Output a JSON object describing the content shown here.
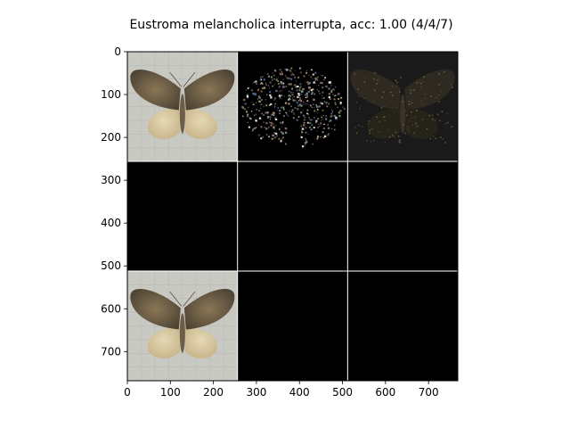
{
  "figure": {
    "title": "Eustroma melancholica interrupta, acc: 1.00 (4/4/7)"
  },
  "chart_data": {
    "type": "image",
    "title": "Eustroma melancholica interrupta, acc: 1.00 (4/4/7)",
    "xlim": [
      0,
      768
    ],
    "ylim": [
      768,
      0
    ],
    "x_ticks": [
      0,
      100,
      200,
      300,
      400,
      500,
      600,
      700
    ],
    "y_ticks": [
      0,
      100,
      200,
      300,
      400,
      500,
      600,
      700
    ],
    "grid_rows": 3,
    "grid_cols": 3,
    "tile_size": 256,
    "panels": [
      {
        "row": 0,
        "col": 0,
        "content": "moth-photo"
      },
      {
        "row": 0,
        "col": 1,
        "content": "sparse-noise-moth"
      },
      {
        "row": 0,
        "col": 2,
        "content": "dark-moth"
      },
      {
        "row": 1,
        "col": 0,
        "content": "black"
      },
      {
        "row": 1,
        "col": 1,
        "content": "black"
      },
      {
        "row": 1,
        "col": 2,
        "content": "black"
      },
      {
        "row": 2,
        "col": 0,
        "content": "moth-photo"
      },
      {
        "row": 2,
        "col": 1,
        "content": "black"
      },
      {
        "row": 2,
        "col": 2,
        "content": "black"
      }
    ],
    "colors": {
      "black_panel": "#000000",
      "photo_bg": "#c9c9c3",
      "moth_body": "#6e5e46",
      "grid_line": "#ffffff"
    }
  }
}
